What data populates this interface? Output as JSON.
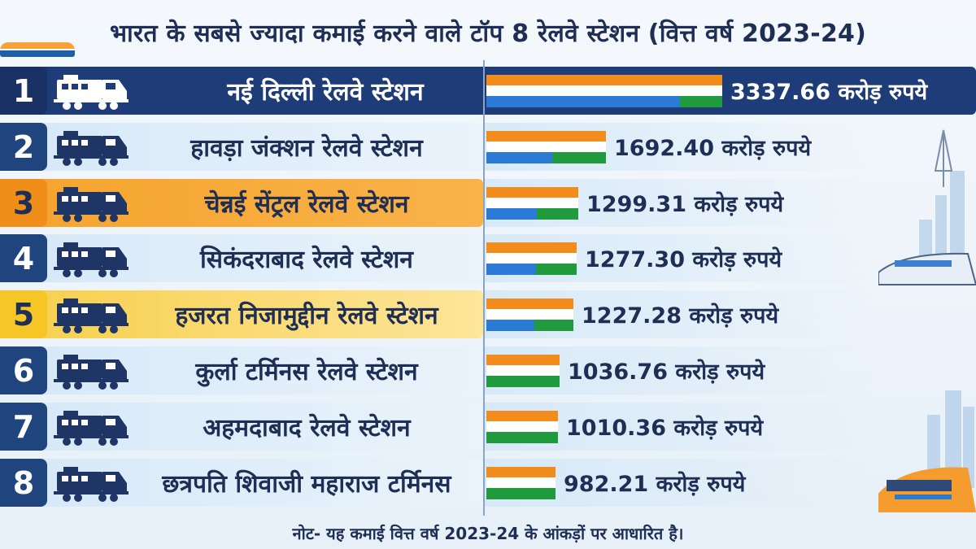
{
  "title": "भारत के सबसे ज्यादा कमाई करने वाले टॉप 8 रेलवे स्टेशन (वित्त वर्ष 2023-24)",
  "footer": "नोट- यह कमाई वित्त वर्ष 2023-24 के आंकड़ों पर आधारित है।",
  "colors": {
    "saffron": "#f28c1c",
    "white": "#ffffff",
    "blue": "#2b7bd6",
    "green": "#1f9a3c",
    "navy": "#1e3c78"
  },
  "chart_data": {
    "type": "bar",
    "title": "भारत के सबसे ज्यादा कमाई करने वाले टॉप 8 रेलवे स्टेशन (वित्त वर्ष 2023-24)",
    "categories": [
      "नई दिल्ली रेलवे स्टेशन",
      "हावड़ा जंक्शन रेलवे स्टेशन",
      "चेन्नई सेंट्रल रेलवे स्टेशन",
      "सिकंदराबाद रेलवे स्टेशन",
      "हजरत निजामुद्दीन रेलवे स्टेशन",
      "कुर्ला टर्मिनस रेलवे स्टेशन",
      "अहमदाबाद रेलवे स्टेशन",
      "छत्रपति शिवाजी महाराज टर्मिनस"
    ],
    "values": [
      3337.66,
      1692.4,
      1299.31,
      1277.3,
      1227.28,
      1036.76,
      1010.36,
      982.21
    ],
    "unit": "करोड़ रुपये",
    "ranks": [
      "1",
      "2",
      "3",
      "4",
      "5",
      "6",
      "7",
      "8"
    ],
    "value_labels": [
      "3337.66 करोड़ रुपये",
      "1692.40 करोड़ रुपये",
      "1299.31 करोड़ रुपये",
      "1277.30 करोड़ रुपये",
      "1227.28 करोड़ रुपये",
      "1036.76 करोड़ रुपये",
      "1010.36 करोड़ रुपये",
      "982.21 करोड़ रुपये"
    ],
    "row_styles": [
      "dark",
      "light",
      "orange",
      "light",
      "yellow",
      "light",
      "light",
      "light"
    ],
    "grid": false,
    "legend": "none"
  }
}
